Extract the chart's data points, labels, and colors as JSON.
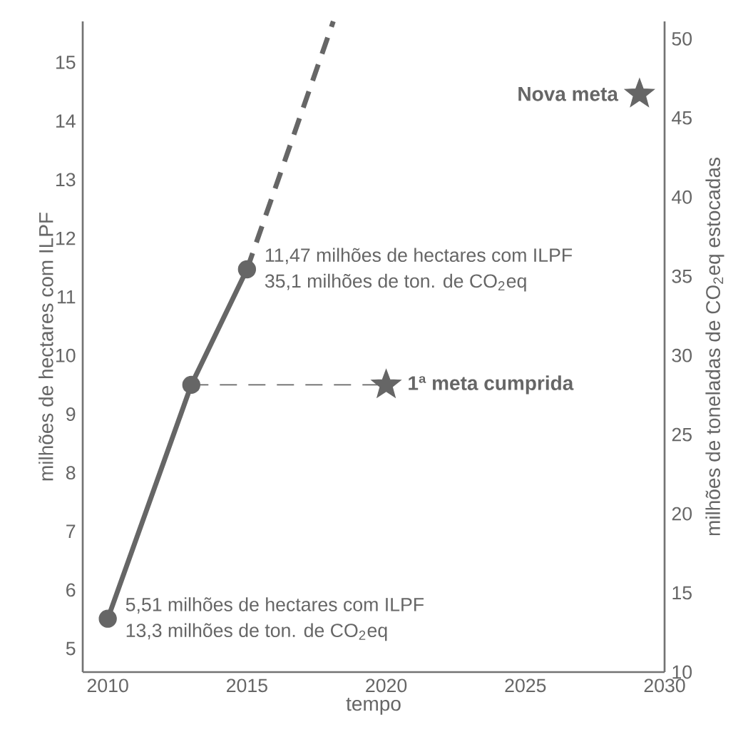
{
  "chart_data": {
    "type": "line",
    "xlabel": "tempo",
    "ylabel": "milhões de hectares com ILPF",
    "y2label": "milhões de toneladas de CO$_{2}$eq estocadas",
    "xlim": [
      2009.1,
      2030
    ],
    "ylim": [
      4.6,
      15.7
    ],
    "y2lim": [
      10,
      51.1
    ],
    "xticks": [
      2010,
      2015,
      2020,
      2025,
      2030
    ],
    "yticks": [
      5,
      6,
      7,
      8,
      9,
      10,
      11,
      12,
      13,
      14,
      15
    ],
    "y2ticks": [
      10,
      15,
      20,
      25,
      30,
      35,
      40,
      45,
      50
    ],
    "series": [
      {
        "color": "#666666",
        "x": [
          2010,
          2013,
          2015
        ],
        "values": [
          5.51,
          9.5,
          11.47
        ],
        "marker": "circle",
        "line_style": "solid"
      },
      {
        "color": "#666666",
        "x": [
          2015,
          2018.1
        ],
        "values": [
          11.47,
          15.7
        ],
        "marker": "none",
        "line_style": "dashed"
      },
      {
        "color": "#666666",
        "x": [
          2013,
          2020
        ],
        "values": [
          9.5,
          9.5
        ],
        "marker": "none",
        "line_style": "dashed"
      },
      {
        "type": "scatter",
        "color": "#666666",
        "x": [
          2020,
          2029.1
        ],
        "values": [
          9.5,
          14.46
        ],
        "marker": "star"
      }
    ],
    "annotations": [
      {
        "text": "11,47 milhões de hectares com ILPF",
        "x": 2015,
        "y": 11.47
      },
      {
        "text": "35,1 milhões de ton. de CO$_{2}$eq",
        "x": 2015,
        "y": 11.47
      },
      {
        "text": "5,51 milhões de hectares com ILPF",
        "x": 2010,
        "y": 5.51
      },
      {
        "text": "13,3 milhões de ton. de CO$_{2}$eq",
        "x": 2010,
        "y": 5.51
      },
      {
        "text": "1ª meta cumprida",
        "x": 2020,
        "y": 9.5
      },
      {
        "text": "Nova meta",
        "x": 2029.1,
        "y": 14.46
      }
    ]
  }
}
